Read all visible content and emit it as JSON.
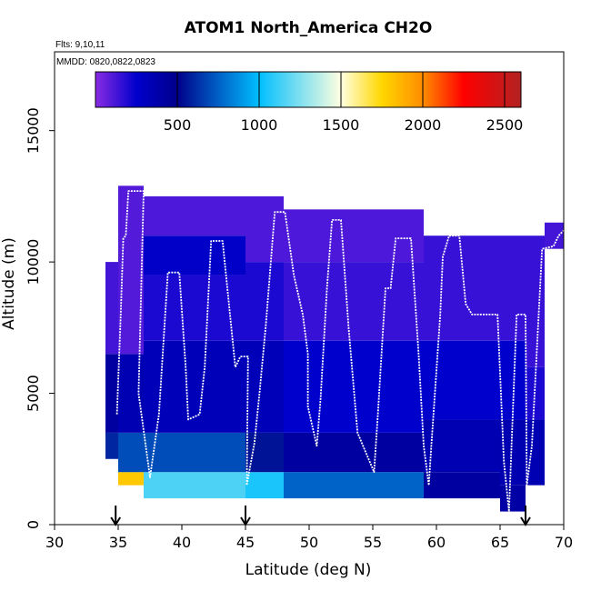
{
  "chart_data": {
    "type": "heatmap",
    "title": "ATOM1 North_America CH2O",
    "flights_label": "Flts: 9,10,11",
    "dates_label": "MMDD: 0820,0822,0823",
    "xlabel": "Latitude (deg N)",
    "ylabel": "Altitude (m)",
    "xlim": [
      30,
      70
    ],
    "ylim": [
      0,
      18000
    ],
    "x_ticks": [
      "30",
      "35",
      "40",
      "45",
      "50",
      "55",
      "60",
      "65",
      "70"
    ],
    "y_ticks": [
      "0",
      "5000",
      "10000",
      "15000"
    ],
    "colorbar": {
      "range": [
        0,
        2600
      ],
      "ticks": [
        "500",
        "1000",
        "1500",
        "2000",
        "2500"
      ],
      "stops": [
        {
          "v": 0,
          "c": "#8a2be2"
        },
        {
          "v": 250,
          "c": "#0000cd"
        },
        {
          "v": 500,
          "c": "#00008b"
        },
        {
          "v": 1000,
          "c": "#00bfff"
        },
        {
          "v": 1500,
          "c": "#ffffe0"
        },
        {
          "v": 1750,
          "c": "#ffd700"
        },
        {
          "v": 2000,
          "c": "#ff8c00"
        },
        {
          "v": 2250,
          "c": "#ff0000"
        },
        {
          "v": 2600,
          "c": "#b22222"
        }
      ]
    },
    "arrow_latitudes": [
      34.8,
      45.0,
      67.0
    ],
    "columns": [
      {
        "lat": [
          34.0,
          35.0
        ],
        "bins": [
          [
            2500,
            3500,
            600
          ],
          [
            3500,
            6500,
            420
          ],
          [
            6500,
            10000,
            130
          ]
        ]
      },
      {
        "lat": [
          35.0,
          37.0
        ],
        "bins": [
          [
            1500,
            2000,
            1800
          ],
          [
            2000,
            3500,
            700
          ],
          [
            3500,
            6500,
            350
          ],
          [
            6500,
            12900,
            100
          ]
        ]
      },
      {
        "lat": [
          37.0,
          45.0
        ],
        "bins": [
          [
            1000,
            2000,
            1150
          ],
          [
            2000,
            3500,
            700
          ],
          [
            3500,
            7000,
            330
          ],
          [
            7000,
            9500,
            200
          ],
          [
            9500,
            11000,
            270
          ],
          [
            11000,
            12500,
            110
          ]
        ]
      },
      {
        "lat": [
          45.0,
          48.0
        ],
        "bins": [
          [
            1000,
            2000,
            1050
          ],
          [
            2000,
            3500,
            550
          ],
          [
            3500,
            7000,
            330
          ],
          [
            7000,
            10000,
            200
          ],
          [
            10000,
            12500,
            110
          ]
        ]
      },
      {
        "lat": [
          48.0,
          59.0
        ],
        "bins": [
          [
            1000,
            2000,
            760
          ],
          [
            2000,
            3500,
            420
          ],
          [
            3500,
            7000,
            250
          ],
          [
            7000,
            10000,
            150
          ],
          [
            10000,
            12000,
            110
          ]
        ]
      },
      {
        "lat": [
          59.0,
          65.0
        ],
        "bins": [
          [
            1000,
            2000,
            420
          ],
          [
            2000,
            4000,
            350
          ],
          [
            4000,
            7000,
            250
          ],
          [
            7000,
            11000,
            150
          ]
        ]
      },
      {
        "lat": [
          65.0,
          67.0
        ],
        "bins": [
          [
            500,
            1500,
            400
          ],
          [
            1500,
            4000,
            360
          ],
          [
            4000,
            7000,
            250
          ],
          [
            7000,
            11000,
            150
          ]
        ]
      },
      {
        "lat": [
          67.0,
          68.5
        ],
        "bins": [
          [
            1500,
            4000,
            350
          ],
          [
            4000,
            6000,
            200
          ],
          [
            6000,
            11000,
            150
          ]
        ]
      },
      {
        "lat": [
          68.5,
          70.0
        ],
        "bins": [
          [
            10500,
            11500,
            130
          ]
        ]
      }
    ],
    "flight_track": [
      [
        34.9,
        4200
      ],
      [
        35.2,
        8000
      ],
      [
        35.4,
        10900
      ],
      [
        35.6,
        11000
      ],
      [
        35.8,
        12700
      ],
      [
        37.0,
        12700
      ],
      [
        36.6,
        5000
      ],
      [
        37.5,
        1800
      ],
      [
        38.2,
        4200
      ],
      [
        38.9,
        9600
      ],
      [
        39.8,
        9600
      ],
      [
        40.3,
        6000
      ],
      [
        40.5,
        4000
      ],
      [
        41.4,
        4200
      ],
      [
        41.8,
        6000
      ],
      [
        42.3,
        10800
      ],
      [
        43.2,
        10800
      ],
      [
        44.2,
        6000
      ],
      [
        44.6,
        6400
      ],
      [
        45.2,
        6400
      ],
      [
        45.1,
        1500
      ],
      [
        45.7,
        3100
      ],
      [
        46.1,
        5000
      ],
      [
        46.6,
        7600
      ],
      [
        47.3,
        11900
      ],
      [
        48.1,
        11900
      ],
      [
        48.8,
        9500
      ],
      [
        49.5,
        8000
      ],
      [
        49.9,
        6500
      ],
      [
        49.9,
        4500
      ],
      [
        50.6,
        3000
      ],
      [
        50.9,
        4800
      ],
      [
        51.4,
        9000
      ],
      [
        51.8,
        11600
      ],
      [
        52.5,
        11600
      ],
      [
        53.1,
        7500
      ],
      [
        53.8,
        3500
      ],
      [
        55.1,
        2000
      ],
      [
        55.4,
        4200
      ],
      [
        56.0,
        9000
      ],
      [
        56.4,
        9000
      ],
      [
        56.8,
        10900
      ],
      [
        58.0,
        10900
      ],
      [
        58.6,
        6500
      ],
      [
        59.0,
        3000
      ],
      [
        59.4,
        1500
      ],
      [
        59.6,
        3000
      ],
      [
        60.3,
        8000
      ],
      [
        60.5,
        10200
      ],
      [
        61.0,
        11000
      ],
      [
        61.8,
        11000
      ],
      [
        62.3,
        8400
      ],
      [
        62.8,
        8000
      ],
      [
        64.8,
        8000
      ],
      [
        65.3,
        2400
      ],
      [
        65.7,
        500
      ],
      [
        66.3,
        8000
      ],
      [
        67.0,
        8000
      ],
      [
        67.1,
        1500
      ],
      [
        67.5,
        3000
      ],
      [
        68.3,
        10500
      ],
      [
        69.2,
        10600
      ],
      [
        69.6,
        11000
      ],
      [
        70.0,
        11200
      ]
    ]
  }
}
